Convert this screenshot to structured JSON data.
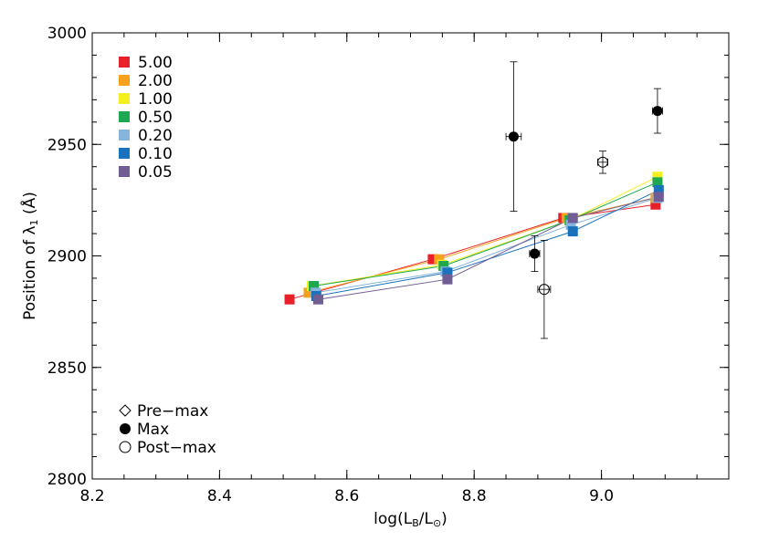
{
  "chart_data": {
    "type": "scatter",
    "xlabel": "log(L_B/L_⊙)",
    "ylabel": "Position of λ_1 (Å)",
    "xlim": [
      8.2,
      9.2
    ],
    "ylim": [
      2800,
      3000
    ],
    "xticks": [
      8.2,
      8.4,
      8.6,
      8.8,
      9.0
    ],
    "xtick_labels": [
      "8.2",
      "8.4",
      "8.6",
      "8.8",
      "9.0"
    ],
    "yticks": [
      2800,
      2850,
      2900,
      2950,
      3000
    ],
    "ytick_labels": [
      "2800",
      "2850",
      "2900",
      "2950",
      "3000"
    ],
    "grid": false,
    "legend_position": "top-left",
    "series": [
      {
        "name": "5.00",
        "color": "#e8202a",
        "points": [
          [
            8.51,
            2880.5
          ],
          [
            8.735,
            2898.5
          ],
          [
            8.94,
            2917
          ],
          [
            9.085,
            2923
          ]
        ]
      },
      {
        "name": "2.00",
        "color": "#f7a21b",
        "points": [
          [
            8.54,
            2883.5
          ],
          [
            8.745,
            2898.5
          ],
          [
            8.945,
            2917
          ],
          [
            9.085,
            2926
          ]
        ]
      },
      {
        "name": "1.00",
        "color": "#f4f01f",
        "points": [
          [
            8.545,
            2886.5
          ],
          [
            8.75,
            2896
          ],
          [
            8.95,
            2916
          ],
          [
            9.088,
            2935.5
          ]
        ]
      },
      {
        "name": "0.50",
        "color": "#1ea850",
        "points": [
          [
            8.548,
            2886.5
          ],
          [
            8.752,
            2895.5
          ],
          [
            8.95,
            2916
          ],
          [
            9.088,
            2933
          ]
        ]
      },
      {
        "name": "0.20",
        "color": "#86b4dc",
        "points": [
          [
            8.551,
            2883.5
          ],
          [
            8.755,
            2893
          ],
          [
            8.952,
            2914
          ],
          [
            9.088,
            2926
          ]
        ]
      },
      {
        "name": "0.10",
        "color": "#1a72bc",
        "points": [
          [
            8.552,
            2882
          ],
          [
            8.758,
            2892.5
          ],
          [
            8.955,
            2911
          ],
          [
            9.09,
            2929.5
          ]
        ]
      },
      {
        "name": "0.05",
        "color": "#6f5d94",
        "points": [
          [
            8.555,
            2880.5
          ],
          [
            8.758,
            2889.5
          ],
          [
            8.955,
            2917
          ],
          [
            9.09,
            2926.5
          ]
        ]
      }
    ],
    "observations": [
      {
        "phase": "Max",
        "x": 8.862,
        "y": 2953.5,
        "xerr": 0.012,
        "yerr": [
          33.5,
          33.5
        ]
      },
      {
        "phase": "Max",
        "x": 8.895,
        "y": 2901,
        "xerr": 0.008,
        "yerr": [
          8,
          8
        ]
      },
      {
        "phase": "Max",
        "x": 9.088,
        "y": 2965,
        "xerr": 0.008,
        "yerr": [
          10,
          10
        ]
      },
      {
        "phase": "Post-max",
        "x": 8.91,
        "y": 2885,
        "xerr": 0.01,
        "yerr": [
          22,
          22
        ]
      },
      {
        "phase": "Post-max",
        "x": 9.002,
        "y": 2942,
        "xerr": 0.008,
        "yerr": [
          5,
          5
        ]
      }
    ],
    "marker_legend": [
      {
        "label": "Pre−max",
        "marker": "diamond-open"
      },
      {
        "label": "Max",
        "marker": "circle-filled"
      },
      {
        "label": "Post−max",
        "marker": "circle-open"
      }
    ]
  }
}
